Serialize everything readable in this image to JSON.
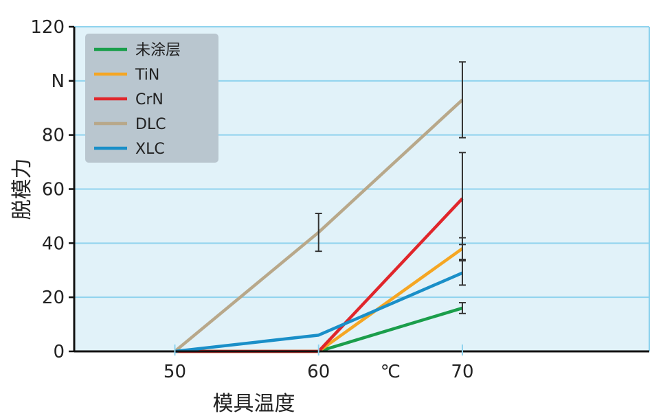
{
  "chart_data": {
    "type": "line",
    "x_ticks": [
      "50",
      "60",
      "70"
    ],
    "x_extra_label": "℃",
    "xlabel": "模具温度",
    "ylabel": "脱模力",
    "y_unit_label": "N",
    "ylim": [
      0,
      120
    ],
    "y_ticks": [
      {
        "value": 0,
        "label": "0"
      },
      {
        "value": 20,
        "label": "20"
      },
      {
        "value": 40,
        "label": "40"
      },
      {
        "value": 60,
        "label": "60"
      },
      {
        "value": 80,
        "label": "80"
      },
      {
        "value": 100,
        "label": "N"
      },
      {
        "value": 120,
        "label": "120"
      }
    ],
    "x": [
      50,
      60,
      70
    ],
    "xlim": [
      43,
      83
    ],
    "grid": true,
    "legend_placement": "top-left",
    "series": [
      {
        "name": "未涂层",
        "color": "#1a9e4b",
        "values": [
          0,
          0,
          16
        ],
        "errors": [
          null,
          null,
          2
        ]
      },
      {
        "name": "TiN",
        "color": "#f5a623",
        "values": [
          0,
          0,
          38
        ],
        "errors": [
          null,
          null,
          4
        ]
      },
      {
        "name": "CrN",
        "color": "#e0262b",
        "values": [
          0,
          0,
          56.5
        ],
        "errors": [
          null,
          null,
          17
        ]
      },
      {
        "name": "DLC",
        "color": "#b8a88a",
        "values": [
          0,
          44,
          93
        ],
        "errors": [
          null,
          7,
          14
        ]
      },
      {
        "name": "XLC",
        "color": "#1a8fc8",
        "values": [
          0,
          6,
          29
        ],
        "errors": [
          null,
          null,
          4.5
        ]
      }
    ],
    "colors": {
      "plot_bg": "#e1f2f9",
      "grid": "#8fd3ee",
      "legend_bg": "#b9c6cf",
      "axis": "#111111"
    }
  }
}
